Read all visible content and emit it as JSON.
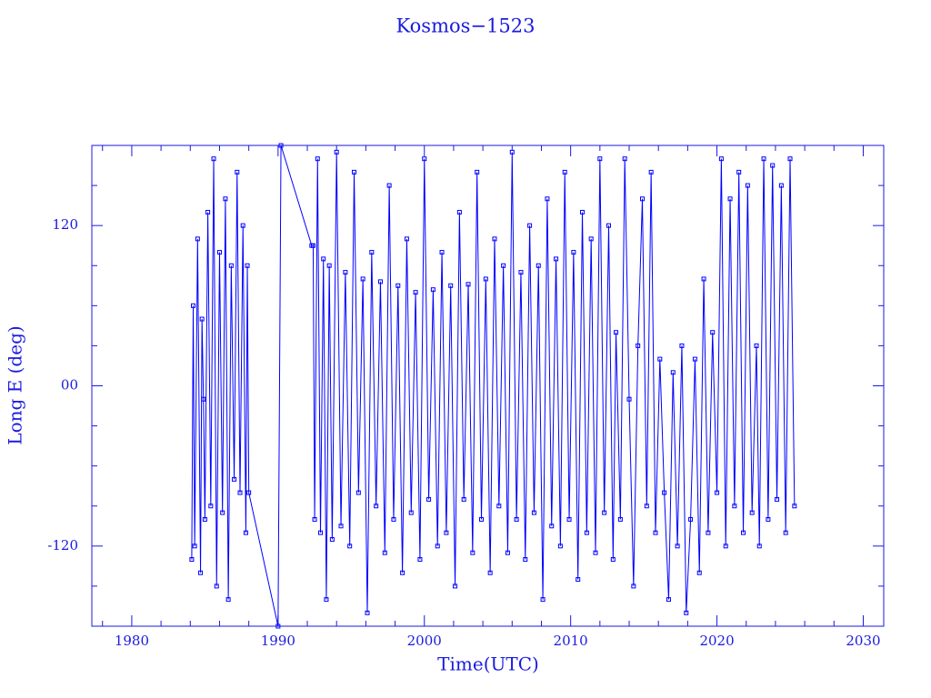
{
  "chart_data": {
    "type": "line",
    "title": "Kosmos−1523",
    "xlabel": "Time(UTC)",
    "ylabel": "Long E (deg)",
    "xlim": [
      1977.27,
      2031.4
    ],
    "ylim": [
      -180,
      180
    ],
    "xticks": [
      1980,
      1990,
      2000,
      2010,
      2020,
      2030
    ],
    "yticks": [
      -120,
      {
        "value": 0,
        "label": "00"
      },
      120
    ],
    "xminor_ticks": [
      1978,
      1982,
      1984,
      1986,
      1988,
      1992,
      1994,
      1996,
      1998,
      2002,
      2004,
      2006,
      2008,
      2012,
      2014,
      2016,
      2018,
      2022,
      2024,
      2026,
      2028
    ],
    "yminor_ticks": [
      -150,
      -90,
      -60,
      -30,
      30,
      60,
      90,
      150
    ],
    "color": "#0000ff",
    "markers": true,
    "x": [
      1984.1,
      1984.2,
      1984.3,
      1984.5,
      1984.7,
      1984.8,
      1984.9,
      1985.0,
      1985.2,
      1985.4,
      1985.6,
      1985.8,
      1986.0,
      1986.2,
      1986.4,
      1986.6,
      1986.8,
      1987.0,
      1987.2,
      1987.4,
      1987.6,
      1987.8,
      1987.9,
      1988.0,
      1990.0,
      1990.2,
      1992.3,
      1992.4,
      1992.5,
      1992.7,
      1992.9,
      1993.1,
      1993.3,
      1993.5,
      1993.7,
      1994.0,
      1994.3,
      1994.6,
      1994.9,
      1995.2,
      1995.5,
      1995.8,
      1996.1,
      1996.4,
      1996.7,
      1997.0,
      1997.3,
      1997.6,
      1997.9,
      1998.2,
      1998.5,
      1998.8,
      1999.1,
      1999.4,
      1999.7,
      2000.0,
      2000.3,
      2000.6,
      2000.9,
      2001.2,
      2001.5,
      2001.8,
      2002.1,
      2002.4,
      2002.7,
      2003.0,
      2003.3,
      2003.6,
      2003.9,
      2004.2,
      2004.5,
      2004.8,
      2005.1,
      2005.4,
      2005.7,
      2006.0,
      2006.3,
      2006.6,
      2006.9,
      2007.2,
      2007.5,
      2007.8,
      2008.1,
      2008.4,
      2008.7,
      2009.0,
      2009.3,
      2009.6,
      2009.9,
      2010.2,
      2010.5,
      2010.8,
      2011.1,
      2011.4,
      2011.7,
      2012.0,
      2012.3,
      2012.6,
      2012.9,
      2013.1,
      2013.4,
      2013.7,
      2014.0,
      2014.3,
      2014.6,
      2014.9,
      2015.2,
      2015.5,
      2015.8,
      2016.1,
      2016.4,
      2016.7,
      2017.0,
      2017.3,
      2017.6,
      2017.9,
      2018.2,
      2018.5,
      2018.8,
      2019.1,
      2019.4,
      2019.7,
      2020.0,
      2020.3,
      2020.6,
      2020.9,
      2021.2,
      2021.5,
      2021.8,
      2022.1,
      2022.4,
      2022.7,
      2022.9,
      2023.2,
      2023.5,
      2023.8,
      2024.1,
      2024.4,
      2024.7,
      2025.0,
      2025.3
    ],
    "values": [
      -130,
      60,
      -120,
      110,
      -140,
      50,
      -10,
      -100,
      130,
      -90,
      170,
      -150,
      100,
      -95,
      140,
      -160,
      90,
      -70,
      160,
      -80,
      120,
      -110,
      90,
      -80,
      -180,
      180,
      105,
      105,
      -100,
      170,
      -110,
      95,
      -160,
      90,
      -115,
      175,
      -105,
      85,
      -120,
      160,
      -80,
      80,
      -170,
      100,
      -90,
      78,
      -125,
      150,
      -100,
      75,
      -140,
      110,
      -95,
      70,
      -130,
      170,
      -85,
      72,
      -120,
      100,
      -110,
      75,
      -150,
      130,
      -85,
      76,
      -125,
      160,
      -100,
      80,
      -140,
      110,
      -90,
      90,
      -125,
      175,
      -100,
      85,
      -130,
      120,
      -95,
      90,
      -160,
      140,
      -105,
      95,
      -120,
      160,
      -100,
      100,
      -145,
      130,
      -110,
      110,
      -125,
      170,
      -95,
      120,
      -130,
      40,
      -100,
      170,
      -10,
      -150,
      30,
      140,
      -90,
      160,
      -110,
      20,
      -80,
      -160,
      10,
      -120,
      30,
      -170,
      -100,
      20,
      -140,
      80,
      -110,
      40,
      -80,
      170,
      -120,
      140,
      -90,
      160,
      -110,
      150,
      -95,
      30,
      -120,
      170,
      -100,
      165,
      -85,
      150,
      -110,
      170,
      -90
    ]
  }
}
